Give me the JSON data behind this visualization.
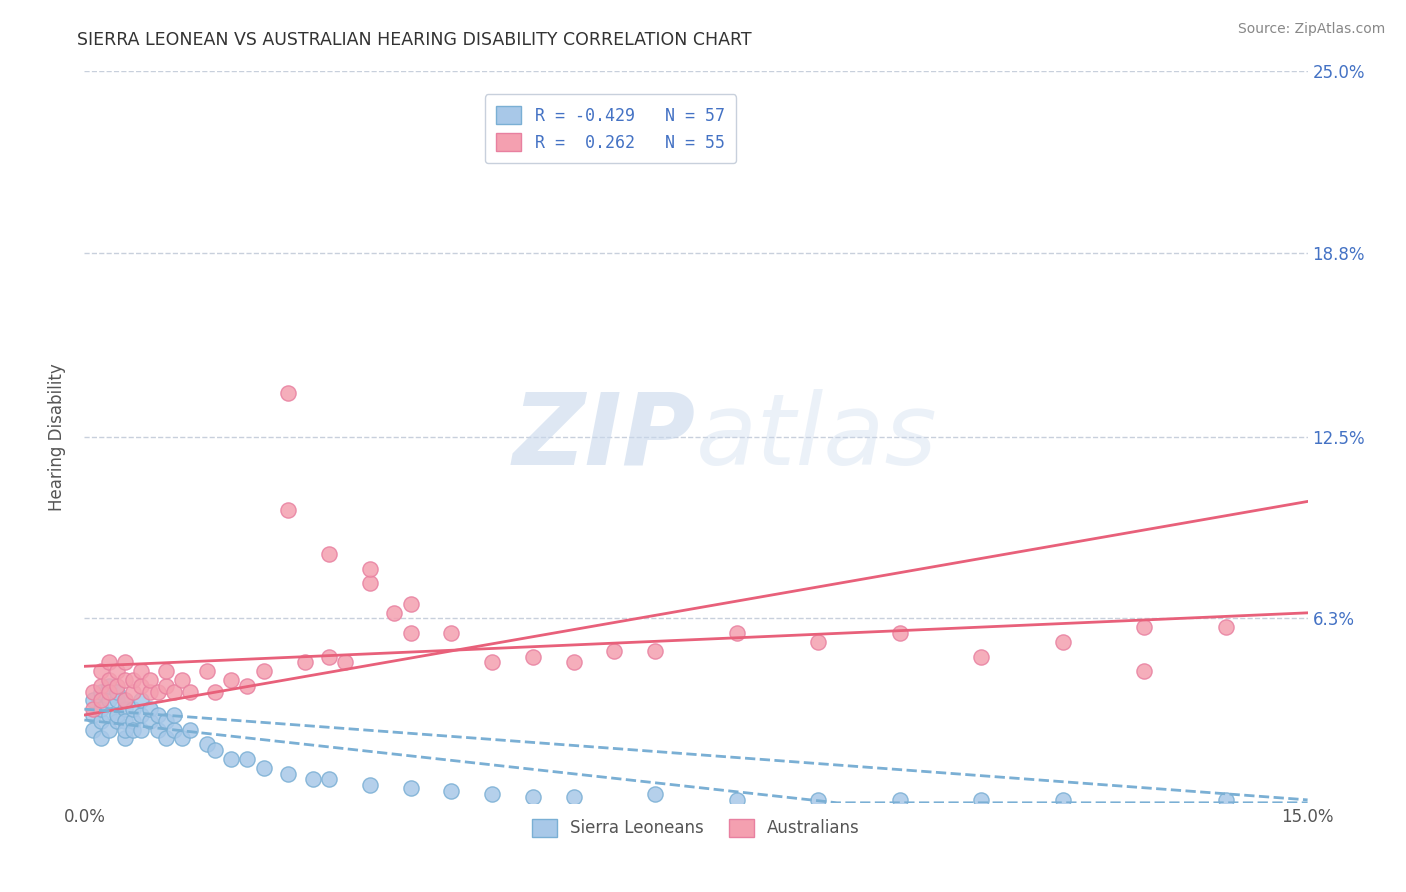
{
  "title": "SIERRA LEONEAN VS AUSTRALIAN HEARING DISABILITY CORRELATION CHART",
  "source": "Source: ZipAtlas.com",
  "ylabel": "Hearing Disability",
  "xlim": [
    0.0,
    0.15
  ],
  "ylim": [
    0.0,
    0.25
  ],
  "color_sl": "#a8c8e8",
  "color_au": "#f4a0b0",
  "color_sl_edge": "#7aafd4",
  "color_au_edge": "#e880a0",
  "color_sl_line": "#7aafd4",
  "color_au_line": "#e8607a",
  "color_legend_text": "#4472c4",
  "background_color": "#ffffff",
  "grid_color": "#c8d0dc",
  "watermark_color": "#dce8f4",
  "sl_scatter_x": [
    0.001,
    0.001,
    0.001,
    0.002,
    0.002,
    0.002,
    0.002,
    0.003,
    0.003,
    0.003,
    0.003,
    0.004,
    0.004,
    0.004,
    0.004,
    0.005,
    0.005,
    0.005,
    0.005,
    0.005,
    0.006,
    0.006,
    0.006,
    0.007,
    0.007,
    0.007,
    0.008,
    0.008,
    0.009,
    0.009,
    0.01,
    0.01,
    0.011,
    0.011,
    0.012,
    0.013,
    0.015,
    0.016,
    0.018,
    0.02,
    0.022,
    0.025,
    0.028,
    0.03,
    0.035,
    0.04,
    0.045,
    0.05,
    0.055,
    0.06,
    0.07,
    0.08,
    0.09,
    0.1,
    0.11,
    0.12,
    0.14
  ],
  "sl_scatter_y": [
    0.03,
    0.025,
    0.035,
    0.028,
    0.032,
    0.038,
    0.022,
    0.03,
    0.035,
    0.025,
    0.04,
    0.028,
    0.035,
    0.03,
    0.038,
    0.022,
    0.032,
    0.028,
    0.025,
    0.035,
    0.028,
    0.032,
    0.025,
    0.03,
    0.025,
    0.035,
    0.028,
    0.032,
    0.025,
    0.03,
    0.028,
    0.022,
    0.025,
    0.03,
    0.022,
    0.025,
    0.02,
    0.018,
    0.015,
    0.015,
    0.012,
    0.01,
    0.008,
    0.008,
    0.006,
    0.005,
    0.004,
    0.003,
    0.002,
    0.002,
    0.003,
    0.001,
    0.001,
    0.001,
    0.001,
    0.001,
    0.001
  ],
  "au_scatter_x": [
    0.001,
    0.001,
    0.002,
    0.002,
    0.002,
    0.003,
    0.003,
    0.003,
    0.004,
    0.004,
    0.005,
    0.005,
    0.005,
    0.006,
    0.006,
    0.007,
    0.007,
    0.008,
    0.008,
    0.009,
    0.01,
    0.01,
    0.011,
    0.012,
    0.013,
    0.015,
    0.016,
    0.018,
    0.02,
    0.022,
    0.025,
    0.027,
    0.03,
    0.032,
    0.035,
    0.038,
    0.04,
    0.045,
    0.05,
    0.055,
    0.06,
    0.065,
    0.07,
    0.08,
    0.09,
    0.1,
    0.11,
    0.12,
    0.13,
    0.14,
    0.025,
    0.03,
    0.035,
    0.04,
    0.13
  ],
  "au_scatter_y": [
    0.038,
    0.032,
    0.04,
    0.045,
    0.035,
    0.042,
    0.038,
    0.048,
    0.04,
    0.045,
    0.035,
    0.042,
    0.048,
    0.038,
    0.042,
    0.04,
    0.045,
    0.038,
    0.042,
    0.038,
    0.04,
    0.045,
    0.038,
    0.042,
    0.038,
    0.045,
    0.038,
    0.042,
    0.04,
    0.045,
    0.14,
    0.048,
    0.05,
    0.048,
    0.075,
    0.065,
    0.058,
    0.058,
    0.048,
    0.05,
    0.048,
    0.052,
    0.052,
    0.058,
    0.055,
    0.058,
    0.05,
    0.055,
    0.045,
    0.06,
    0.1,
    0.085,
    0.08,
    0.068,
    0.06
  ]
}
